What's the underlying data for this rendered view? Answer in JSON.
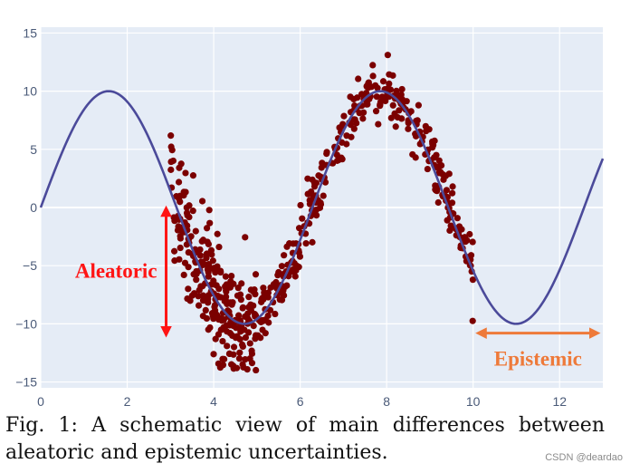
{
  "chart_data": {
    "type": "scatter",
    "title": "",
    "xlabel": "",
    "ylabel": "",
    "xlim": [
      0,
      13
    ],
    "ylim": [
      -15.5,
      15.5
    ],
    "x_ticks": [
      0,
      2,
      4,
      6,
      8,
      10,
      12
    ],
    "y_ticks": [
      15,
      10,
      5,
      0,
      -5,
      -10,
      -15
    ],
    "grid": true,
    "line": {
      "function": "10*sin(x)",
      "x_range": [
        0,
        13
      ],
      "color": "#4b4a9a"
    },
    "points": {
      "color": "#7b0000",
      "regions": [
        {
          "x_range": [
            3,
            5
          ],
          "function": "10*sin(x)",
          "noise_std": 2.5
        },
        {
          "x_range": [
            5,
            10
          ],
          "function": "10*sin(x)",
          "noise_std": 1.2
        }
      ]
    },
    "annotations": [
      {
        "text": "Aleatoric",
        "color": "#ff1414",
        "arrow": {
          "type": "vertical-double",
          "x": 2.9,
          "y_from": 0,
          "y_to": -11
        }
      },
      {
        "text": "Epistemic",
        "color": "#ee7a3a",
        "arrow": {
          "type": "horizontal-double",
          "y": -10.8,
          "x_from": 10.1,
          "x_to": 12.9
        }
      }
    ]
  },
  "caption": {
    "line1": "Fig. 1: A schematic view of main differences between",
    "line2": "aleatoric and epistemic uncertainties."
  },
  "watermark": "CSDN @deardao"
}
